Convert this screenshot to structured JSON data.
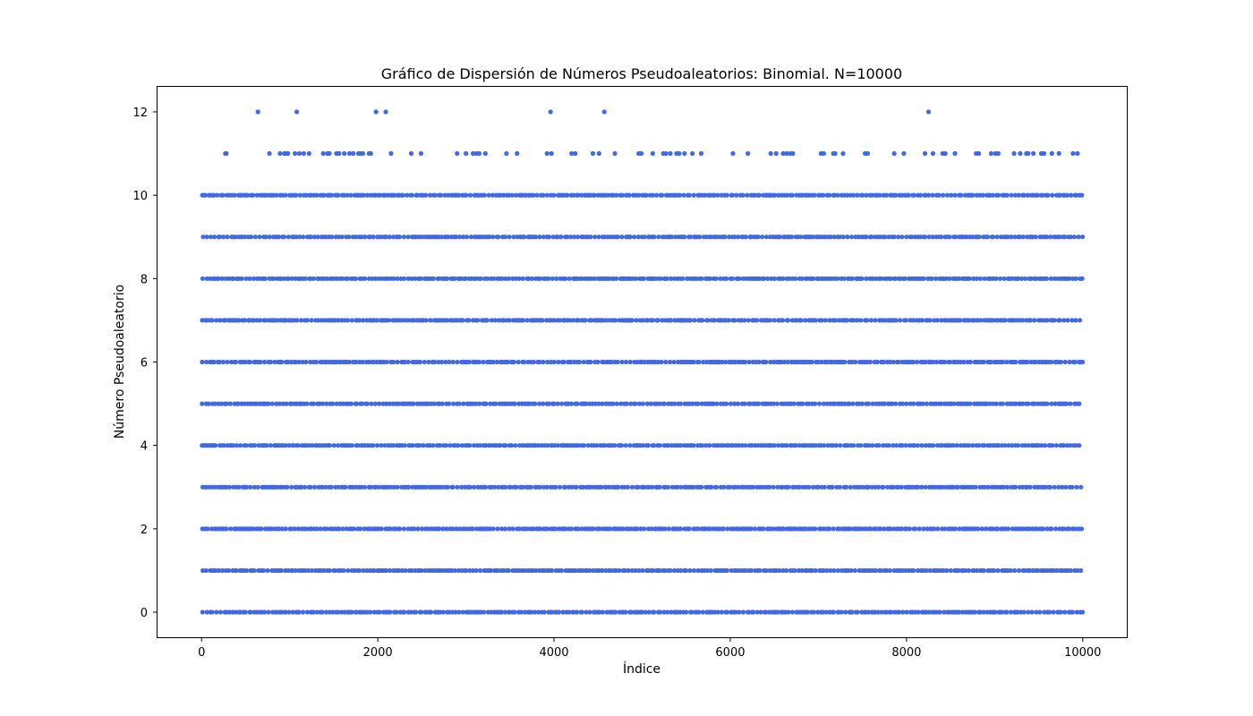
{
  "chart_data": {
    "type": "scatter",
    "title": "Gráfico de Dispersión de Números Pseudoaleatorios: Binomial. N=10000",
    "xlabel": "Índice",
    "ylabel": "Número Pseudoaleatorio",
    "xlim": [
      -500,
      10500
    ],
    "ylim": [
      -0.6,
      12.6
    ],
    "xticks": [
      0,
      2000,
      4000,
      6000,
      8000,
      10000
    ],
    "xtick_labels": [
      "0",
      "2000",
      "4000",
      "6000",
      "8000",
      "10000"
    ],
    "yticks": [
      0,
      2,
      4,
      6,
      8,
      10,
      12
    ],
    "ytick_labels": [
      "0",
      "2",
      "4",
      "6",
      "8",
      "10",
      "12"
    ],
    "grid": false,
    "color": "#4169e1",
    "n": 10000,
    "series": [
      {
        "name": "",
        "dense_rows": [
          0,
          1,
          2,
          3,
          4,
          5,
          6,
          7,
          8,
          9,
          10
        ],
        "dense_x_range": [
          0,
          9999
        ],
        "points_y11": {
          "x": [
            270,
            280,
            770,
            890,
            940,
            960,
            980,
            1060,
            1110,
            1160,
            1220,
            1380,
            1430,
            1450,
            1530,
            1560,
            1620,
            1680,
            1720,
            1780,
            1800,
            1830,
            1900,
            1920,
            2150,
            2380,
            2490,
            2900,
            3000,
            3080,
            3120,
            3150,
            3220,
            3460,
            3580,
            3920,
            3970,
            4200,
            4240,
            4440,
            4510,
            4690,
            4960,
            4990,
            5120,
            5240,
            5270,
            5320,
            5390,
            5420,
            5480,
            5570,
            5670,
            6030,
            6200,
            6460,
            6520,
            6600,
            6640,
            6680,
            6710,
            7030,
            7060,
            7170,
            7190,
            7280,
            7530,
            7560,
            7860,
            7970,
            8210,
            8300,
            8410,
            8440,
            8550,
            8790,
            8820,
            8960,
            9010,
            9040,
            9220,
            9290,
            9360,
            9380,
            9440,
            9530,
            9560,
            9650,
            9730,
            9890,
            9940
          ],
          "y": 11
        },
        "points_y12": {
          "x": [
            640,
            1080,
            1980,
            2090,
            3960,
            4570,
            8250
          ],
          "y": 12
        }
      }
    ]
  }
}
